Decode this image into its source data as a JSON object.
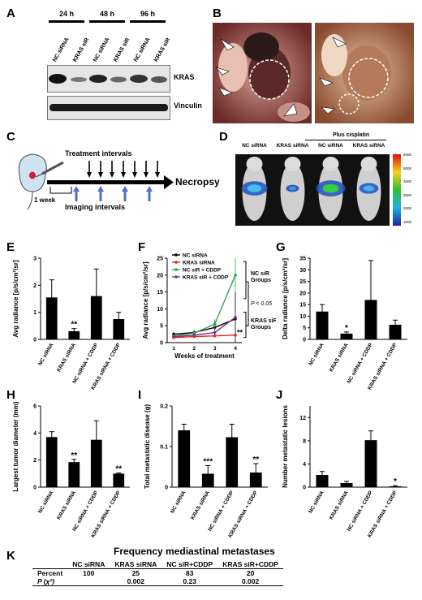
{
  "panels": {
    "A": {
      "label": "A",
      "timepoints": [
        "24 h",
        "48 h",
        "96 h"
      ],
      "lanes": [
        "NC siRNA",
        "KRAS siR",
        "NC siRNA",
        "KRAS siR",
        "NC siRNA",
        "KRAS siR"
      ],
      "blots": [
        "KRAS",
        "Vinculin"
      ]
    },
    "B": {
      "label": "B"
    },
    "C": {
      "label": "C",
      "treatment_label": "Treatment intervals",
      "imaging_label": "Imaging intervals",
      "week_label": "1 week",
      "endpoint_label": "Necropsy"
    },
    "D": {
      "label": "D",
      "group_labels": [
        "NC siRNA",
        "KRAS siRNA",
        "NC siRNA",
        "KRAS siRNA"
      ],
      "cisplatin_label": "Plus cisplatin",
      "scale_ticks": [
        "6000",
        "5000",
        "4000",
        "3000",
        "2000",
        "1000"
      ]
    },
    "K": {
      "label": "K",
      "title": "Frequency mediastinal metastases",
      "columns": [
        "",
        "NC siRNA",
        "KRAS siRNA",
        "NC siR+CDDP",
        "KRAS siR+CDDP"
      ],
      "rows": [
        [
          "Percent",
          "100",
          "25",
          "83",
          "20"
        ],
        [
          "P (χ²)",
          "",
          "0.002",
          "0.23",
          "0.002"
        ]
      ]
    }
  },
  "chart_data": [
    {
      "id": "E",
      "type": "bar",
      "categories": [
        "NC siRNA",
        "KRAS siRNA",
        "NC siRNA + CDDP",
        "KRAS siRNA + CDDP"
      ],
      "values": [
        1.55,
        0.3,
        1.6,
        0.75
      ],
      "errors": [
        0.65,
        0.1,
        1.0,
        0.25
      ],
      "significance": [
        "",
        "**",
        "",
        ""
      ],
      "ylabel": "Avg radiance [p/s/cm²/sr]",
      "ylim": [
        0,
        3
      ],
      "yticks": [
        0,
        1,
        2,
        3
      ]
    },
    {
      "id": "F",
      "type": "line",
      "x": [
        1,
        2,
        3,
        4
      ],
      "xlabel": "Weeks of treatment",
      "ylabel": "Avg radiance [p/s/cm²/sr]",
      "ylim": [
        0,
        25
      ],
      "yticks": [
        0,
        5,
        10,
        15,
        20,
        25
      ],
      "series": [
        {
          "name": "NC siRNA",
          "color": "#000000",
          "values": [
            2.5,
            3,
            4.5,
            7
          ],
          "errors": [
            0.6,
            0.8,
            2.0,
            8
          ]
        },
        {
          "name": "KRAS siRNA",
          "color": "#e8261c",
          "values": [
            1.5,
            1.8,
            2,
            2.2
          ],
          "errors": [
            0.3,
            0.4,
            0.5,
            0.6
          ]
        },
        {
          "name": "NC siR + CDDP",
          "color": "#2aa84a",
          "values": [
            2,
            2.8,
            5.5,
            20
          ],
          "errors": [
            0.5,
            0.8,
            1.5,
            5
          ]
        },
        {
          "name": "KRAS siR + CDDP",
          "color": "#7a2c8c",
          "values": [
            1.8,
            2.2,
            3,
            7.5
          ],
          "errors": [
            0.4,
            0.5,
            0.8,
            1.5
          ]
        }
      ],
      "annotations": {
        "nc_group": "NC siR Groups",
        "pvalue": "P < 0.05",
        "kras_group": "KRAS siR Groups",
        "sig": "**"
      }
    },
    {
      "id": "G",
      "type": "bar",
      "categories": [
        "NC siRNA",
        "KRAS siRNA",
        "NC siRNA + CDDP",
        "KRAS siRNA + CDDP"
      ],
      "values": [
        12,
        2.5,
        17,
        6.3
      ],
      "errors": [
        3,
        0.7,
        17,
        2
      ],
      "significance": [
        "",
        "*",
        "",
        ""
      ],
      "ylabel": "Delta radiance [p/s/cm²/sr]",
      "ylim": [
        0,
        35
      ],
      "yticks": [
        0,
        5,
        10,
        15,
        20,
        25,
        30,
        35
      ]
    },
    {
      "id": "H",
      "type": "bar",
      "categories": [
        "NC siRNA",
        "KRAS siRNA",
        "NC siRNA + CDDP",
        "KRAS siRNA + CDDP"
      ],
      "values": [
        3.7,
        1.85,
        3.5,
        1.0
      ],
      "errors": [
        0.4,
        0.2,
        1.4,
        0.05
      ],
      "significance": [
        "",
        "**",
        "",
        "**"
      ],
      "ylabel": "Largest tumor diameter (mm)",
      "ylim": [
        0,
        6
      ],
      "yticks": [
        0,
        2,
        4,
        6
      ]
    },
    {
      "id": "I",
      "type": "bar",
      "categories": [
        "NC siRNA",
        "KRAS siRNA",
        "NC siRNA + CDDP",
        "KRAS siRNA + CDDP"
      ],
      "values": [
        0.14,
        0.033,
        0.123,
        0.036
      ],
      "errors": [
        0.015,
        0.02,
        0.032,
        0.022
      ],
      "significance": [
        "",
        "***",
        "",
        "**"
      ],
      "ylabel": "Total metastatic disease (g)",
      "ylim": [
        0,
        0.2
      ],
      "yticks": [
        0,
        0.1,
        0.2
      ]
    },
    {
      "id": "J",
      "type": "bar",
      "categories": [
        "NC siRNA",
        "KRAS siRNA",
        "NC siRNA + CDDP",
        "KRAS siRNA + CDDP"
      ],
      "values": [
        2.1,
        0.7,
        8.1,
        0.15
      ],
      "errors": [
        0.6,
        0.3,
        1.6,
        0.1
      ],
      "significance": [
        "",
        "",
        "",
        "*"
      ],
      "ylabel": "Number metastatic lesions",
      "ylim": [
        0,
        14
      ],
      "yticks": [
        0,
        4,
        8,
        12
      ]
    }
  ]
}
